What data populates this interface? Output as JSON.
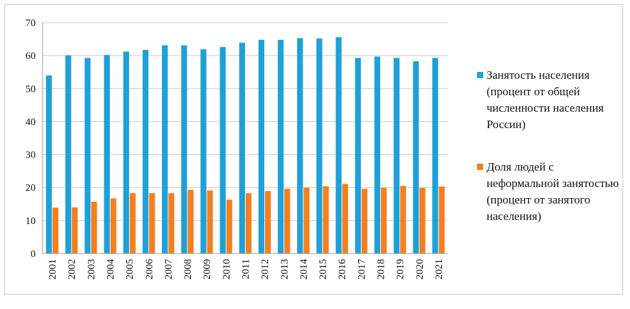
{
  "chart_data": {
    "type": "bar",
    "categories": [
      "2001",
      "2002",
      "2003",
      "2004",
      "2005",
      "2006",
      "2007",
      "2008",
      "2009",
      "2010",
      "2011",
      "2012",
      "2013",
      "2014",
      "2015",
      "2016",
      "2017",
      "2018",
      "2019",
      "2020",
      "2021"
    ],
    "series": [
      {
        "name": "Занятость населения (процент от общей численности населения России)",
        "values": [
          54.0,
          60.1,
          59.3,
          60.2,
          61.2,
          61.7,
          63.1,
          63.1,
          61.9,
          62.6,
          63.9,
          64.8,
          64.8,
          65.3,
          65.2,
          65.6,
          59.3,
          59.7,
          59.3,
          58.3,
          59.3
        ],
        "color": "#1fa0d8"
      },
      {
        "name": "Доля людей с неформальной занятостью (процент от занятого населения)",
        "values": [
          13.9,
          14.0,
          15.7,
          16.7,
          18.3,
          18.3,
          18.3,
          19.3,
          19.1,
          16.3,
          18.3,
          18.9,
          19.6,
          20.0,
          20.4,
          21.1,
          19.6,
          19.9,
          20.5,
          19.9,
          20.3
        ],
        "color": "#f47f20"
      }
    ],
    "ylim": [
      0,
      70
    ],
    "yticks": [
      "0",
      "10",
      "20",
      "30",
      "40",
      "50",
      "60",
      "70"
    ],
    "grid": true,
    "legend_position": "right",
    "title": "",
    "xlabel": "",
    "ylabel": ""
  },
  "legend": {
    "items": [
      {
        "label": "Занятость населения (процент от общей численности населения России)",
        "color": "#1fa0d8"
      },
      {
        "label": "Доля людей с неформальной занятостью (процент от занятого населения)",
        "color": "#f47f20"
      }
    ]
  }
}
